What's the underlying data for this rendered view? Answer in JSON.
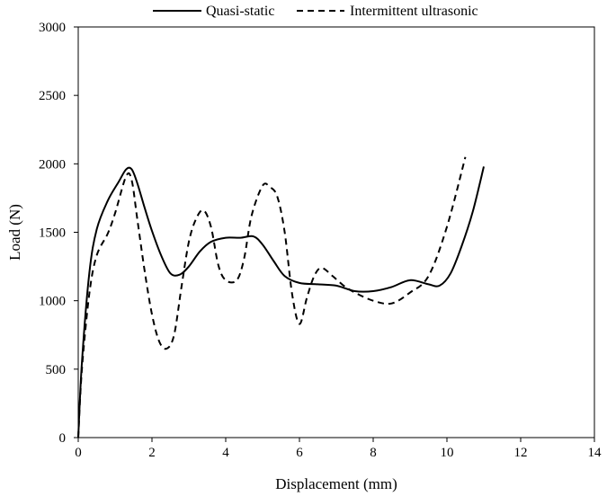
{
  "chart_data": {
    "type": "line",
    "title": "",
    "xlabel": "Displacement (mm)",
    "ylabel": "Load (N)",
    "xlim": [
      0,
      14
    ],
    "ylim": [
      0,
      3000
    ],
    "xticks": [
      0,
      2,
      4,
      6,
      8,
      10,
      12,
      14
    ],
    "yticks": [
      0,
      500,
      1000,
      1500,
      2000,
      2500,
      3000
    ],
    "grid": false,
    "legend": "top",
    "series": [
      {
        "name": "Quasi-static",
        "style": "solid",
        "color": "#000000",
        "x": [
          0,
          0.1,
          0.3,
          0.5,
          0.8,
          1.1,
          1.3,
          1.45,
          1.6,
          1.8,
          2.0,
          2.25,
          2.5,
          2.75,
          3.0,
          3.3,
          3.6,
          4.0,
          4.4,
          4.75,
          5.0,
          5.3,
          5.6,
          6.0,
          6.5,
          7.0,
          7.5,
          8.0,
          8.5,
          9.0,
          9.5,
          9.8,
          10.1,
          10.4,
          10.7,
          11.0
        ],
        "y": [
          0,
          550,
          1200,
          1520,
          1730,
          1870,
          1960,
          1960,
          1860,
          1680,
          1510,
          1330,
          1200,
          1190,
          1250,
          1360,
          1430,
          1460,
          1460,
          1470,
          1410,
          1290,
          1180,
          1130,
          1120,
          1110,
          1070,
          1070,
          1100,
          1150,
          1120,
          1110,
          1200,
          1400,
          1650,
          1980
        ]
      },
      {
        "name": "Intermittent ultrasonic",
        "style": "dashed",
        "color": "#000000",
        "x": [
          0,
          0.1,
          0.3,
          0.5,
          0.8,
          1.0,
          1.3,
          1.45,
          1.6,
          1.8,
          2.0,
          2.2,
          2.4,
          2.6,
          2.8,
          3.0,
          3.2,
          3.4,
          3.6,
          3.8,
          4.0,
          4.3,
          4.5,
          4.7,
          5.0,
          5.2,
          5.4,
          5.6,
          5.8,
          6.0,
          6.2,
          6.4,
          6.6,
          6.9,
          7.2,
          7.5,
          8.0,
          8.5,
          9.0,
          9.5,
          10.0,
          10.5
        ],
        "y": [
          0,
          500,
          1050,
          1330,
          1490,
          1640,
          1910,
          1880,
          1600,
          1220,
          900,
          700,
          650,
          750,
          1100,
          1430,
          1600,
          1660,
          1540,
          1260,
          1150,
          1150,
          1310,
          1620,
          1840,
          1830,
          1760,
          1500,
          1050,
          830,
          1020,
          1180,
          1240,
          1180,
          1110,
          1060,
          1000,
          980,
          1060,
          1180,
          1540,
          2050
        ]
      }
    ]
  }
}
